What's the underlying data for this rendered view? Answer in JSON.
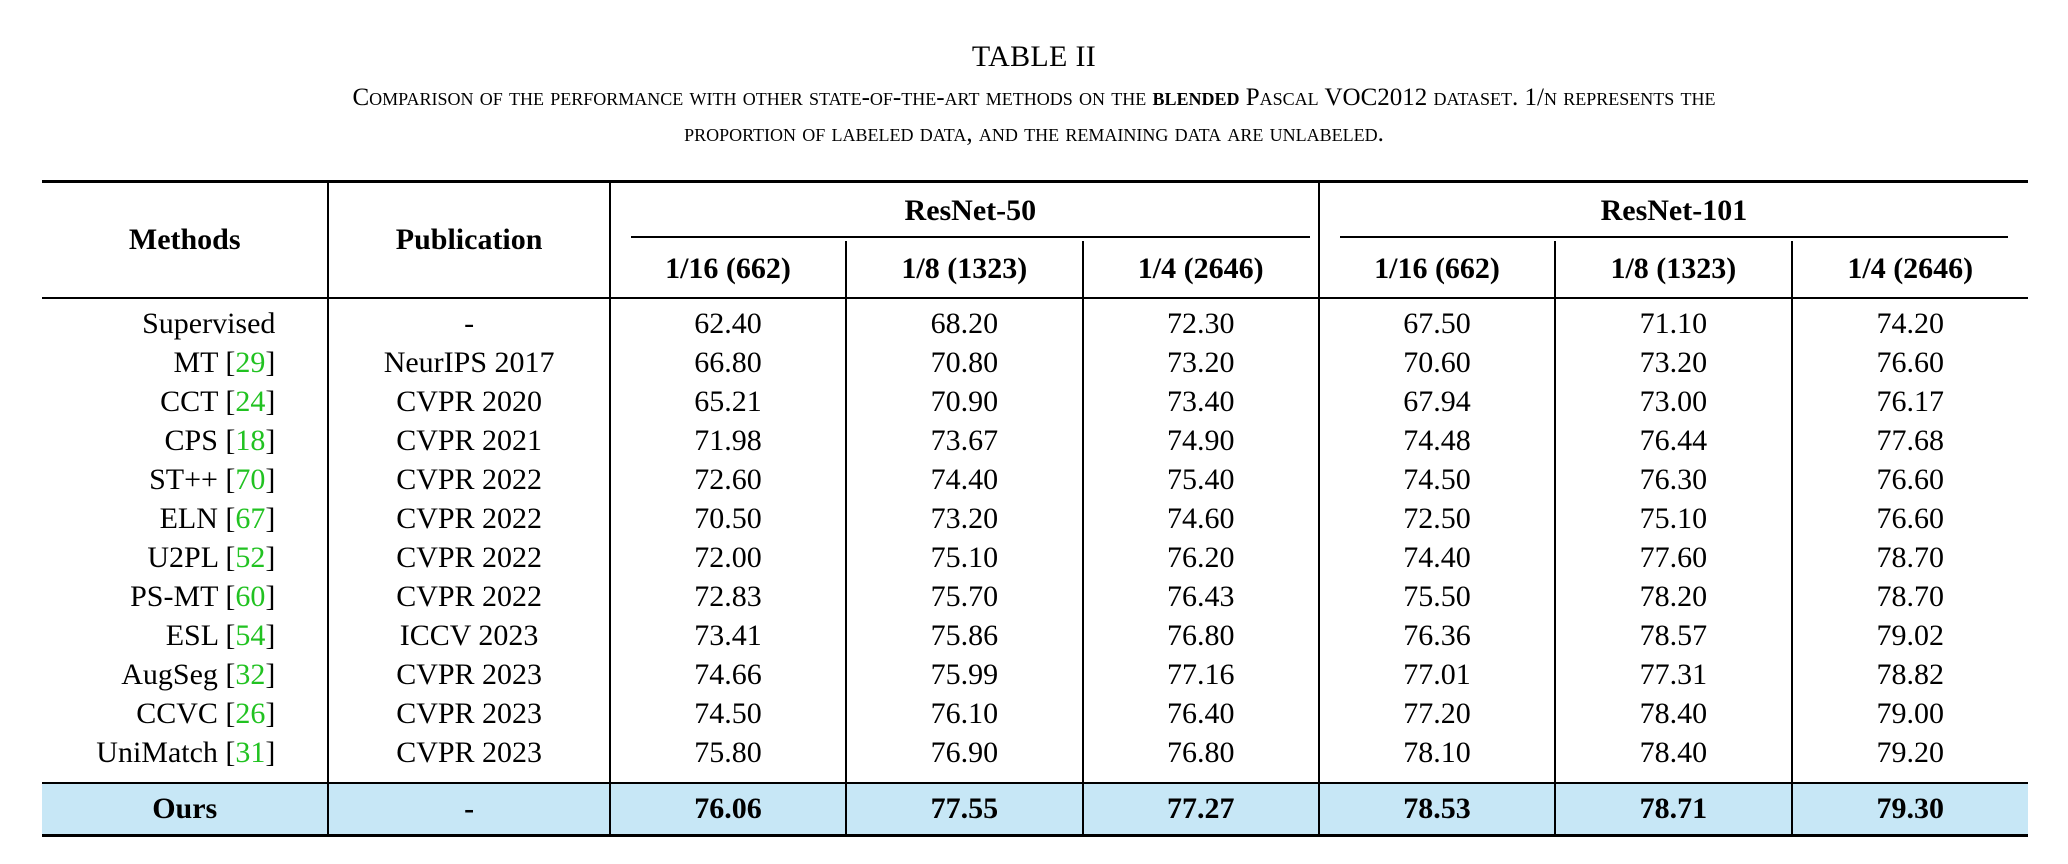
{
  "caption": {
    "title": "TABLE II",
    "line1_a": "Comparison of the performance with other state-of-the-art methods on the ",
    "line1_bold": "blended",
    "line1_b": " Pascal VOC2012 dataset. 1/n represents the",
    "line2": "proportion of labeled data, and the remaining data are unlabeled."
  },
  "table": {
    "headers": {
      "methods": "Methods",
      "publication": "Publication",
      "group1": "ResNet-50",
      "group2": "ResNet-101",
      "splits": [
        "1/16 (662)",
        "1/8 (1323)",
        "1/4 (2646)",
        "1/16 (662)",
        "1/8 (1323)",
        "1/4 (2646)"
      ]
    },
    "rows": [
      {
        "method": "Supervised",
        "ref": "",
        "publication": "-",
        "values": [
          "62.40",
          "68.20",
          "72.30",
          "67.50",
          "71.10",
          "74.20"
        ]
      },
      {
        "method": "MT",
        "ref": "29",
        "publication": "NeurIPS 2017",
        "values": [
          "66.80",
          "70.80",
          "73.20",
          "70.60",
          "73.20",
          "76.60"
        ]
      },
      {
        "method": "CCT",
        "ref": "24",
        "publication": "CVPR 2020",
        "values": [
          "65.21",
          "70.90",
          "73.40",
          "67.94",
          "73.00",
          "76.17"
        ]
      },
      {
        "method": "CPS",
        "ref": "18",
        "publication": "CVPR 2021",
        "values": [
          "71.98",
          "73.67",
          "74.90",
          "74.48",
          "76.44",
          "77.68"
        ]
      },
      {
        "method": "ST++",
        "ref": "70",
        "publication": "CVPR 2022",
        "values": [
          "72.60",
          "74.40",
          "75.40",
          "74.50",
          "76.30",
          "76.60"
        ]
      },
      {
        "method": "ELN",
        "ref": "67",
        "publication": "CVPR 2022",
        "values": [
          "70.50",
          "73.20",
          "74.60",
          "72.50",
          "75.10",
          "76.60"
        ]
      },
      {
        "method": "U2PL",
        "ref": "52",
        "publication": "CVPR 2022",
        "values": [
          "72.00",
          "75.10",
          "76.20",
          "74.40",
          "77.60",
          "78.70"
        ]
      },
      {
        "method": "PS-MT",
        "ref": "60",
        "publication": "CVPR 2022",
        "values": [
          "72.83",
          "75.70",
          "76.43",
          "75.50",
          "78.20",
          "78.70"
        ]
      },
      {
        "method": "ESL",
        "ref": "54",
        "publication": "ICCV 2023",
        "values": [
          "73.41",
          "75.86",
          "76.80",
          "76.36",
          "78.57",
          "79.02"
        ]
      },
      {
        "method": "AugSeg",
        "ref": "32",
        "publication": "CVPR 2023",
        "values": [
          "74.66",
          "75.99",
          "77.16",
          "77.01",
          "77.31",
          "78.82"
        ]
      },
      {
        "method": "CCVC",
        "ref": "26",
        "publication": "CVPR 2023",
        "values": [
          "74.50",
          "76.10",
          "76.40",
          "77.20",
          "78.40",
          "79.00"
        ]
      },
      {
        "method": "UniMatch",
        "ref": "31",
        "publication": "CVPR 2023",
        "values": [
          "75.80",
          "76.90",
          "76.80",
          "78.10",
          "78.40",
          "79.20"
        ]
      }
    ],
    "ours": {
      "method": "Ours",
      "publication": "-",
      "values": [
        "76.06",
        "77.55",
        "77.27",
        "78.53",
        "78.71",
        "79.30"
      ]
    },
    "colors": {
      "ours_highlight": "#c7e7f6",
      "reference_link": "#21c221"
    }
  }
}
